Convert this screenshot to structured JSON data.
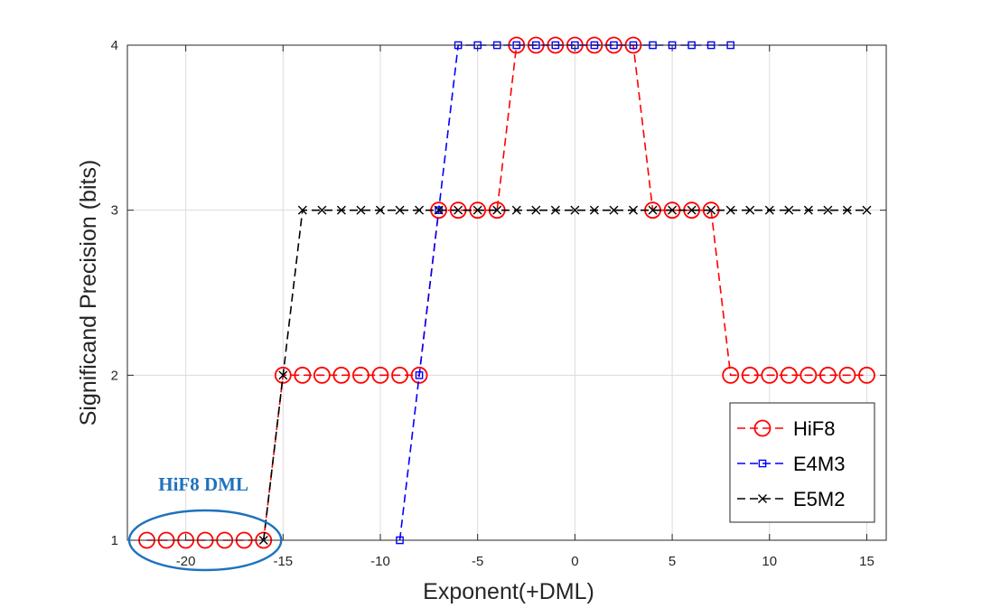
{
  "chart_data": {
    "type": "line",
    "xlabel": "Exponent(+DML)",
    "ylabel": "Significand Precision (bits)",
    "xlim": [
      -23,
      16
    ],
    "ylim": [
      1,
      4
    ],
    "xticks": [
      -20,
      -15,
      -10,
      -5,
      0,
      5,
      10,
      15
    ],
    "xtick_labels": [
      "-20",
      "-15",
      "-10",
      "-5",
      "0",
      "5",
      "10",
      "15"
    ],
    "yticks": [
      1,
      2,
      3,
      4
    ],
    "ytick_labels": [
      "1",
      "2",
      "3",
      "4"
    ],
    "grid": true,
    "legend_position": "bottom-right",
    "series": [
      {
        "name": "HiF8",
        "color": "#ff0000",
        "marker": "circle",
        "line_style": "dashed",
        "x": [
          -22,
          -21,
          -20,
          -19,
          -18,
          -17,
          -16,
          -15,
          -14,
          -13,
          -12,
          -11,
          -10,
          -9,
          -8,
          -7,
          -6,
          -5,
          -4,
          -3,
          -2,
          -1,
          0,
          1,
          2,
          3,
          4,
          5,
          6,
          7,
          8,
          9,
          10,
          11,
          12,
          13,
          14,
          15
        ],
        "y": [
          1,
          1,
          1,
          1,
          1,
          1,
          1,
          2,
          2,
          2,
          2,
          2,
          2,
          2,
          2,
          3,
          3,
          3,
          3,
          4,
          4,
          4,
          4,
          4,
          4,
          4,
          3,
          3,
          3,
          3,
          2,
          2,
          2,
          2,
          2,
          2,
          2,
          2
        ]
      },
      {
        "name": "E4M3",
        "color": "#0000ff",
        "marker": "square",
        "line_style": "dashed",
        "x": [
          -9,
          -8,
          -7,
          -6,
          -5,
          -4,
          -3,
          -2,
          -1,
          0,
          1,
          2,
          3,
          4,
          5,
          6,
          7,
          8
        ],
        "y": [
          1,
          2,
          3,
          4,
          4,
          4,
          4,
          4,
          4,
          4,
          4,
          4,
          4,
          4,
          4,
          4,
          4,
          4
        ]
      },
      {
        "name": "E5M2",
        "color": "#000000",
        "marker": "x",
        "line_style": "dashed",
        "x": [
          -16,
          -15,
          -14,
          -13,
          -12,
          -11,
          -10,
          -9,
          -8,
          -7,
          -6,
          -5,
          -4,
          -3,
          -2,
          -1,
          0,
          1,
          2,
          3,
          4,
          5,
          6,
          7,
          8,
          9,
          10,
          11,
          12,
          13,
          14,
          15
        ],
        "y": [
          1,
          2,
          3,
          3,
          3,
          3,
          3,
          3,
          3,
          3,
          3,
          3,
          3,
          3,
          3,
          3,
          3,
          3,
          3,
          3,
          3,
          3,
          3,
          3,
          3,
          3,
          3,
          3,
          3,
          3,
          3,
          3
        ]
      }
    ],
    "annotation": {
      "text": "HiF8 DML",
      "color": "#1f72bd",
      "ellipse_x_range": [
        -23,
        -15
      ],
      "ellipse_y": 1
    }
  }
}
